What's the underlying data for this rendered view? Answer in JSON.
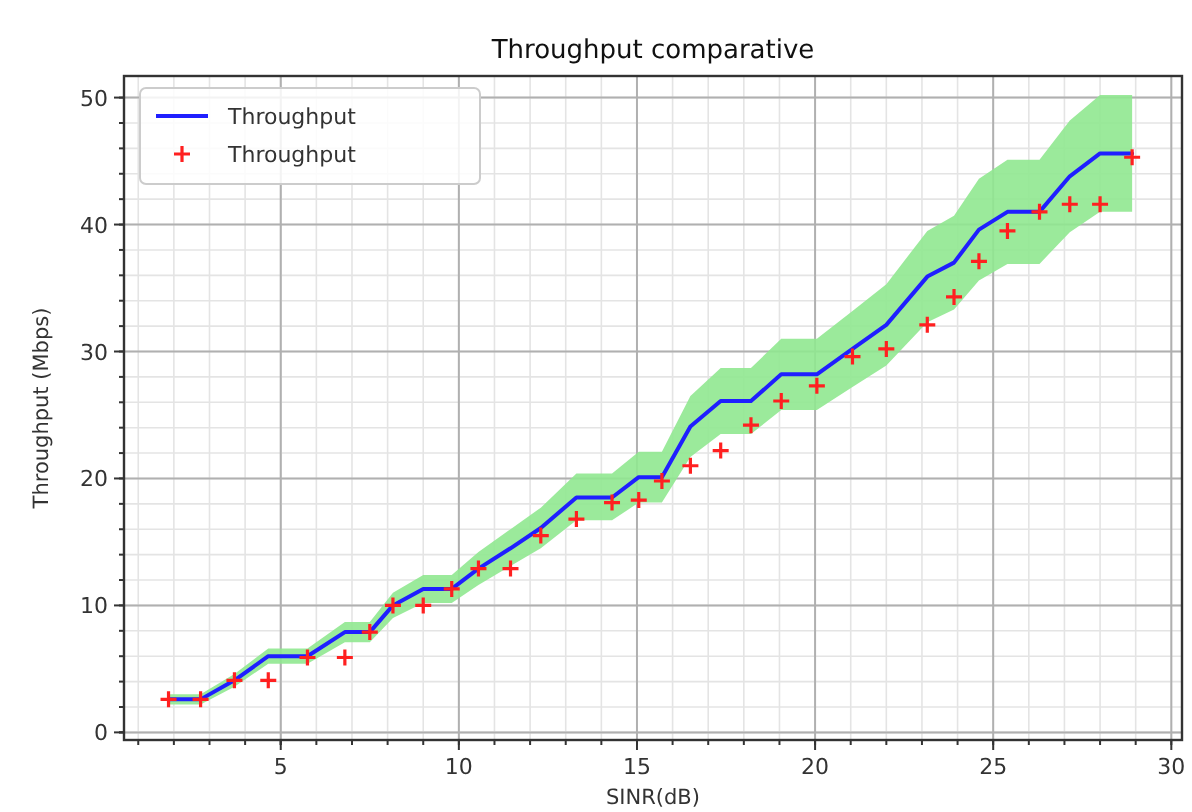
{
  "chart_data": {
    "type": "line",
    "title": "Throughput comparative",
    "xlabel": "SINR(dB)",
    "ylabel": "Throughput (Mbps)",
    "xlim": [
      0.6,
      30.3
    ],
    "xticks": [
      5,
      10,
      15,
      20,
      25,
      30
    ],
    "ylim": [
      -0.6,
      51.7
    ],
    "yticks": [
      0,
      10,
      20,
      30,
      40,
      50
    ],
    "grid": true,
    "legend": "top left",
    "series": [
      {
        "name": "Throughput",
        "color": "#1f1fff",
        "line_style": "solid",
        "marker": "none",
        "x": [
          1.85,
          2.75,
          3.7,
          4.65,
          5.75,
          6.8,
          7.5,
          8.15,
          9.0,
          9.8,
          10.55,
          11.45,
          12.3,
          13.3,
          14.3,
          15.05,
          15.7,
          16.5,
          17.35,
          18.2,
          19.05,
          20.05,
          21.05,
          22.0,
          23.15,
          23.9,
          24.6,
          25.4,
          26.3,
          27.15,
          28.0,
          28.9
        ],
        "values": [
          2.6,
          2.6,
          4.1,
          6.0,
          6.0,
          7.9,
          7.9,
          10.0,
          11.3,
          11.3,
          12.9,
          14.5,
          16.1,
          18.5,
          18.5,
          20.1,
          20.1,
          24.1,
          26.1,
          26.1,
          28.2,
          28.2,
          30.2,
          32.1,
          35.9,
          37.0,
          39.6,
          41.0,
          41.0,
          43.8,
          45.6,
          45.6
        ],
        "lower": [
          2.2,
          2.2,
          3.6,
          5.4,
          5.4,
          7.1,
          7.1,
          9.0,
          10.2,
          10.2,
          11.6,
          13.1,
          14.5,
          16.7,
          16.7,
          18.1,
          18.1,
          21.7,
          23.5,
          23.5,
          25.4,
          25.4,
          27.2,
          28.9,
          32.3,
          33.3,
          35.6,
          36.9,
          36.9,
          39.4,
          41.0,
          41.0
        ],
        "upper": [
          3.0,
          3.0,
          4.6,
          6.6,
          6.6,
          8.7,
          8.7,
          11.0,
          12.4,
          12.4,
          14.2,
          16.0,
          17.7,
          20.4,
          20.4,
          22.1,
          22.1,
          26.5,
          28.7,
          28.7,
          31.0,
          31.0,
          33.2,
          35.3,
          39.5,
          40.7,
          43.6,
          45.1,
          45.1,
          48.2,
          50.2,
          50.2
        ]
      },
      {
        "name": "Throughput",
        "type": "scatter",
        "color": "#ff2020",
        "marker": "cross",
        "x": [
          1.85,
          2.75,
          3.7,
          4.65,
          5.75,
          6.8,
          7.5,
          8.15,
          9.0,
          9.8,
          10.55,
          11.45,
          12.3,
          13.3,
          14.3,
          15.05,
          15.7,
          16.5,
          17.35,
          18.2,
          19.05,
          20.05,
          21.05,
          22.0,
          23.15,
          23.9,
          24.6,
          25.4,
          26.3,
          27.15,
          28.0,
          28.9
        ],
        "values": [
          2.6,
          2.6,
          4.1,
          4.1,
          5.9,
          5.9,
          7.9,
          10.0,
          10.0,
          11.3,
          12.9,
          12.9,
          15.5,
          16.8,
          18.1,
          18.3,
          19.8,
          21.0,
          22.2,
          24.2,
          26.1,
          27.3,
          29.6,
          30.2,
          32.1,
          34.3,
          37.1,
          39.5,
          41.0,
          41.6,
          41.6,
          45.3
        ]
      }
    ]
  }
}
